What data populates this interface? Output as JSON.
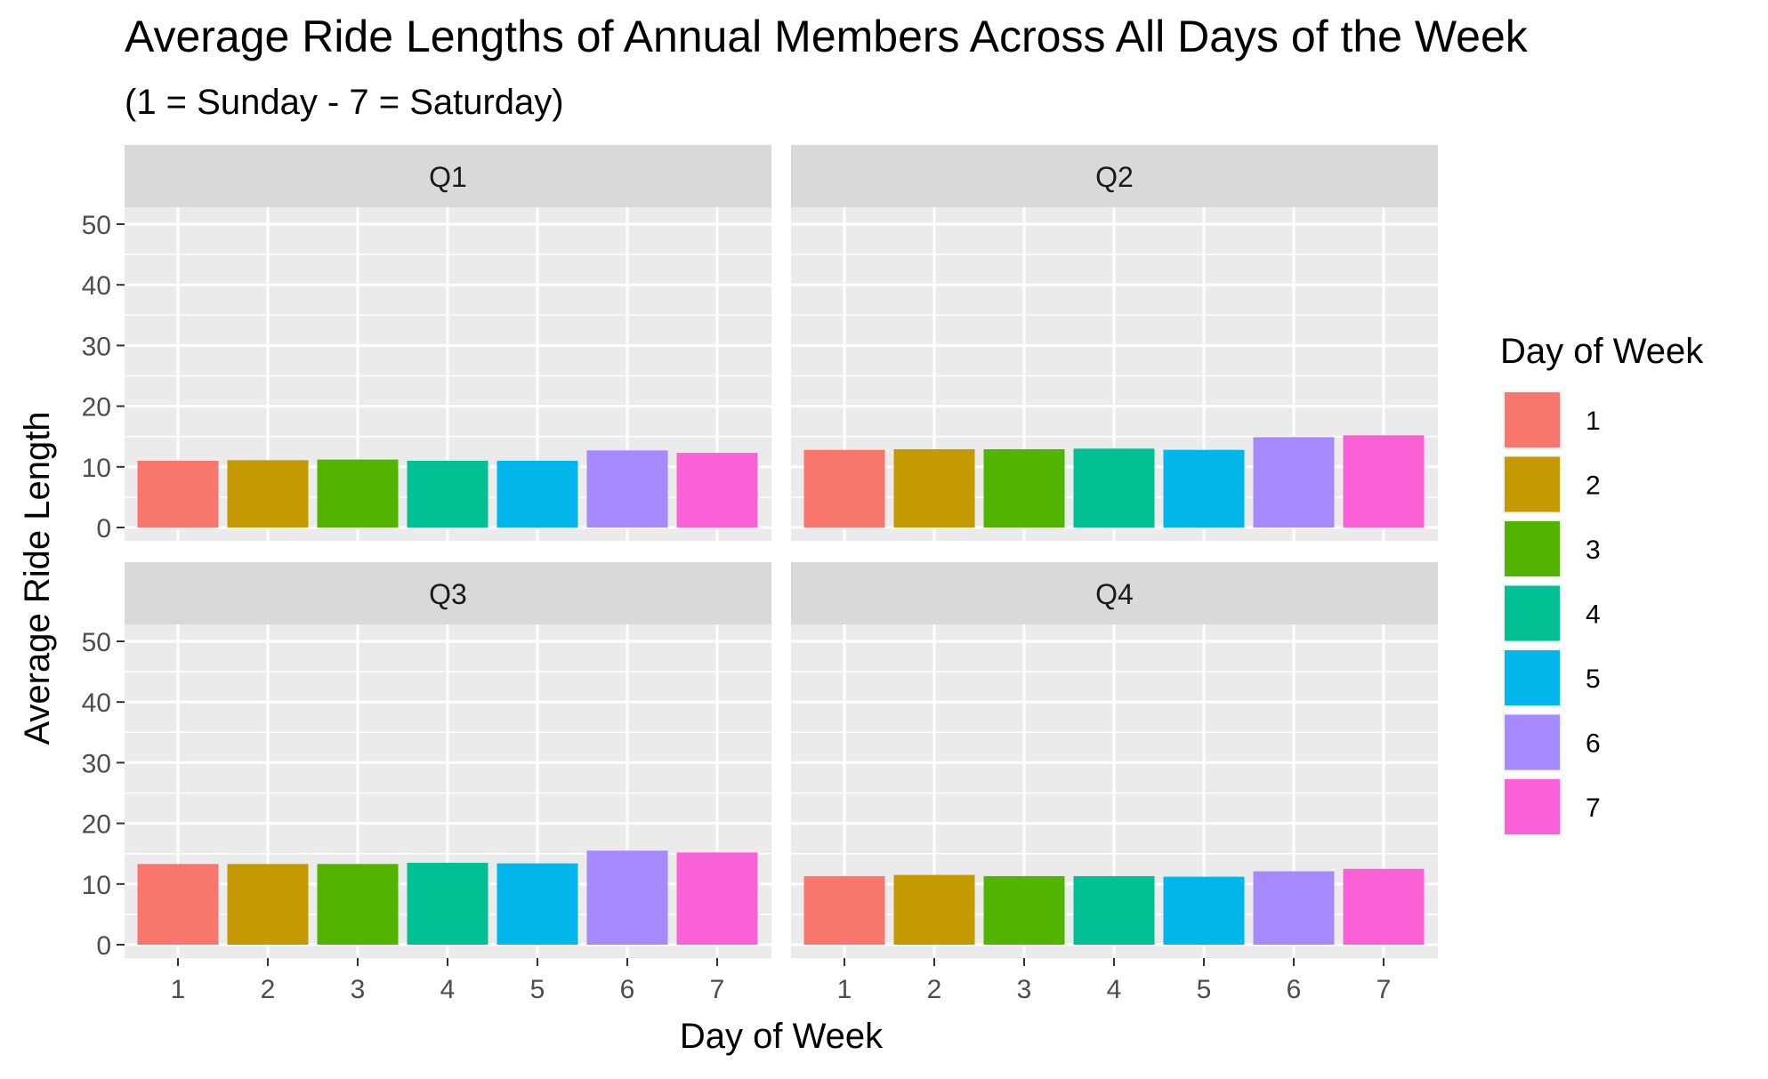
{
  "chart_data": {
    "type": "bar",
    "title": "Average Ride Lengths of Annual Members Across All Days of the Week",
    "subtitle": "(1 = Sunday - 7 = Saturday)",
    "xlabel": "Day of Week",
    "ylabel": "Average Ride Length",
    "ylim": [
      0,
      53
    ],
    "y_ticks": [
      "0",
      "10",
      "20",
      "30",
      "40",
      "50"
    ],
    "y_tick_values": [
      0,
      10,
      20,
      30,
      40,
      50
    ],
    "grid": true,
    "facet_layout": "2x2",
    "categories": [
      "1",
      "2",
      "3",
      "4",
      "5",
      "6",
      "7"
    ],
    "legend": {
      "title": "Day of Week",
      "placement": "right",
      "entries": [
        "1",
        "2",
        "3",
        "4",
        "5",
        "6",
        "7"
      ]
    },
    "colors": [
      "#F8766D",
      "#C49A00",
      "#53B400",
      "#00C094",
      "#00B6EB",
      "#A58AFF",
      "#FB61D7"
    ],
    "panels": [
      {
        "label": "Q1",
        "values": [
          11.0,
          11.1,
          11.2,
          11.0,
          11.0,
          12.7,
          12.3
        ]
      },
      {
        "label": "Q2",
        "values": [
          12.8,
          12.9,
          12.9,
          13.0,
          12.8,
          14.9,
          15.2
        ]
      },
      {
        "label": "Q3",
        "values": [
          13.3,
          13.3,
          13.3,
          13.5,
          13.4,
          15.5,
          15.2
        ]
      },
      {
        "label": "Q4",
        "values": [
          11.3,
          11.5,
          11.3,
          11.3,
          11.2,
          12.1,
          12.5
        ]
      }
    ]
  }
}
